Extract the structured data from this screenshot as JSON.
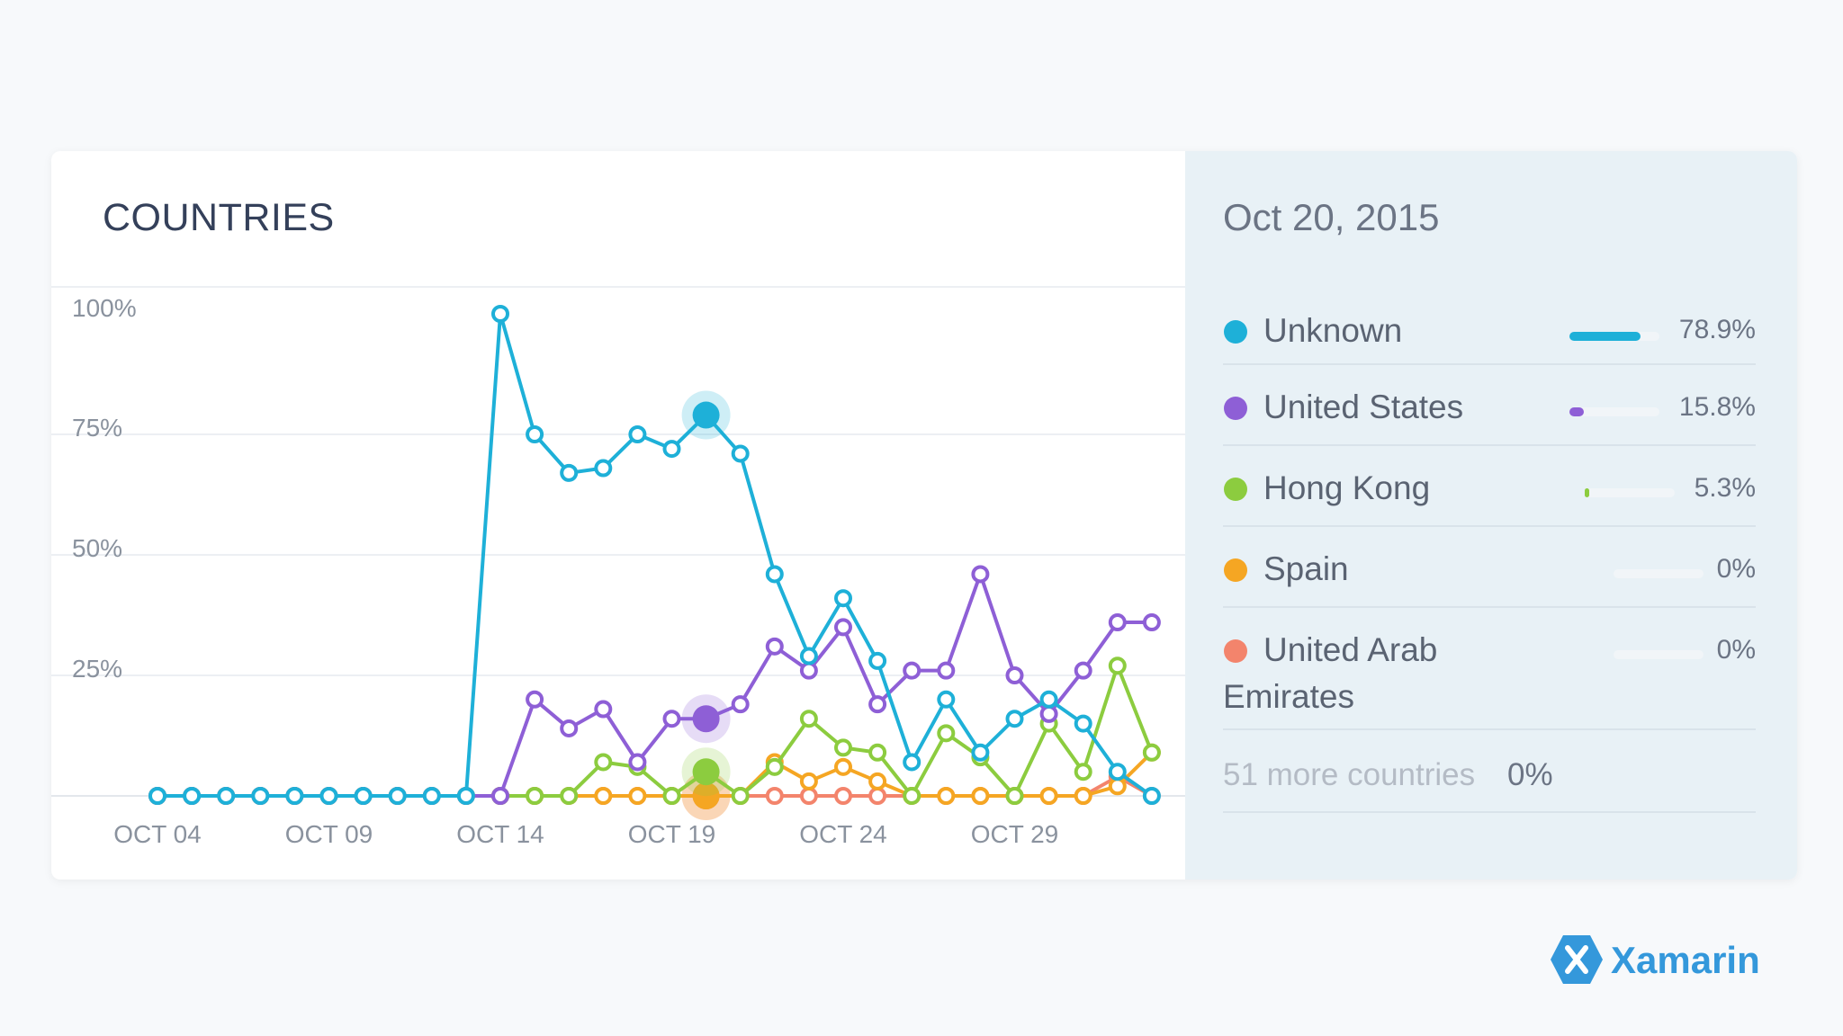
{
  "card": {
    "title": "COUNTRIES"
  },
  "side": {
    "date": "Oct 20, 2015",
    "items": [
      {
        "name": "Unknown",
        "pct": "78.9%",
        "value": 78.9,
        "color": "#1eb0d8"
      },
      {
        "name": "United States",
        "pct": "15.8%",
        "value": 15.8,
        "color": "#8e5fd6"
      },
      {
        "name": "Hong Kong",
        "pct": "5.3%",
        "value": 5.3,
        "color": "#8ccc3f"
      },
      {
        "name": "Spain",
        "pct": "0%",
        "value": 0,
        "color": "#f5a623"
      },
      {
        "name": "United Arab Emirates",
        "pct": "0%",
        "value": 0,
        "color": "#f3846c"
      }
    ],
    "more": {
      "label": "51 more countries",
      "pct": "0%"
    }
  },
  "brand": {
    "name": "Xamarin",
    "icon": "xamarin-logo-icon",
    "color": "#3498db"
  },
  "chart_data": {
    "type": "line",
    "title": "COUNTRIES",
    "x": [
      "Oct 04",
      "Oct 05",
      "Oct 06",
      "Oct 07",
      "Oct 08",
      "Oct 09",
      "Oct 10",
      "Oct 11",
      "Oct 12",
      "Oct 13",
      "Oct 14",
      "Oct 15",
      "Oct 16",
      "Oct 17",
      "Oct 18",
      "Oct 19",
      "Oct 20",
      "Oct 21",
      "Oct 22",
      "Oct 23",
      "Oct 24",
      "Oct 25",
      "Oct 26",
      "Oct 27",
      "Oct 28",
      "Oct 29",
      "Oct 30",
      "Oct 31",
      "Nov 01",
      "Nov 02"
    ],
    "x_ticks": [
      "OCT 04",
      "OCT 09",
      "OCT 14",
      "OCT 19",
      "OCT 24",
      "OCT 29"
    ],
    "y_ticks": [
      "100%",
      "75%",
      "50%",
      "25%"
    ],
    "ylim": [
      0,
      100
    ],
    "grid": true,
    "highlight_date": "Oct 20",
    "series": [
      {
        "name": "Unknown",
        "color": "#1eb0d8",
        "values": [
          0,
          0,
          0,
          0,
          0,
          0,
          0,
          0,
          0,
          0,
          100,
          75,
          67,
          68,
          75,
          72,
          79,
          71,
          46,
          29,
          41,
          28,
          7,
          20,
          9,
          16,
          20,
          15,
          5,
          0
        ]
      },
      {
        "name": "United States",
        "color": "#8e5fd6",
        "values": [
          0,
          0,
          0,
          0,
          0,
          0,
          0,
          0,
          0,
          0,
          0,
          20,
          14,
          18,
          7,
          16,
          16,
          19,
          31,
          26,
          35,
          19,
          26,
          26,
          46,
          25,
          17,
          26,
          36,
          36
        ]
      },
      {
        "name": "Hong Kong",
        "color": "#8ccc3f",
        "values": [
          0,
          0,
          0,
          0,
          0,
          0,
          0,
          0,
          0,
          0,
          0,
          0,
          0,
          7,
          6,
          0,
          5,
          0,
          6,
          16,
          10,
          9,
          0,
          13,
          8,
          0,
          15,
          5,
          27,
          9
        ]
      },
      {
        "name": "Spain",
        "color": "#f5a623",
        "values": [
          0,
          0,
          0,
          0,
          0,
          0,
          0,
          0,
          0,
          0,
          0,
          0,
          0,
          0,
          0,
          0,
          0,
          0,
          7,
          3,
          6,
          3,
          0,
          0,
          0,
          0,
          0,
          0,
          2,
          9
        ]
      },
      {
        "name": "United Arab Emirates",
        "color": "#f3846c",
        "values": [
          0,
          0,
          0,
          0,
          0,
          0,
          0,
          0,
          0,
          0,
          0,
          0,
          0,
          0,
          0,
          0,
          0,
          0,
          0,
          0,
          0,
          0,
          0,
          0,
          0,
          0,
          0,
          0,
          4,
          0
        ]
      }
    ]
  }
}
